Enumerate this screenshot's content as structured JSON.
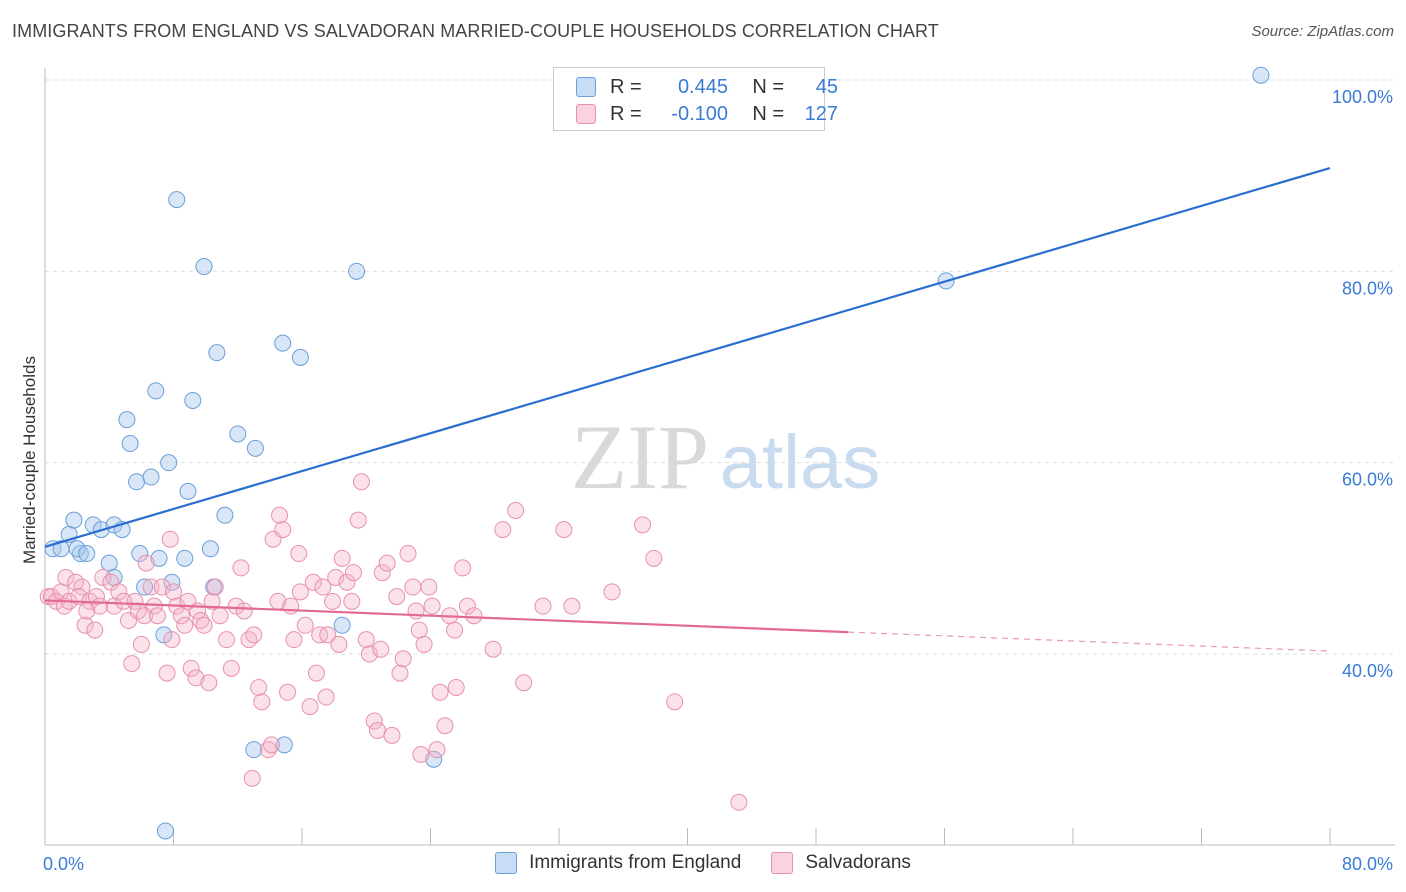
{
  "header": {
    "title": "IMMIGRANTS FROM ENGLAND VS SALVADORAN MARRIED-COUPLE HOUSEHOLDS CORRELATION CHART",
    "source": "Source: ZipAtlas.com"
  },
  "watermark": {
    "zip": "ZIP",
    "atlas": "atlas"
  },
  "legend": {
    "rows": [
      {
        "r_label": "R =",
        "r_value": "0.445",
        "n_label": "N =",
        "n_value": "45",
        "color": "#a9c8ee"
      },
      {
        "r_label": "R =",
        "r_value": "-0.100",
        "n_label": "N =",
        "n_value": "127",
        "color": "#f5b3c8"
      }
    ]
  },
  "chart_data": {
    "type": "scatter",
    "title": "IMMIGRANTS FROM ENGLAND VS SALVADORAN MARRIED-COUPLE HOUSEHOLDS CORRELATION CHART",
    "xlabel": "",
    "ylabel": "Married-couple Households",
    "xlim": [
      0,
      80
    ],
    "ylim": [
      20,
      102
    ],
    "x_tick_labels": [
      "0.0%",
      "80.0%"
    ],
    "y_ticks": [
      {
        "value": 40,
        "label": "40.0%"
      },
      {
        "value": 60,
        "label": "60.0%"
      },
      {
        "value": 80,
        "label": "80.0%"
      },
      {
        "value": 100,
        "label": "100.0%"
      }
    ],
    "series": [
      {
        "name": "Immigrants from England",
        "color": "#a9c8ee",
        "stroke": "#6a9fd8",
        "trend": {
          "x": [
            0,
            80
          ],
          "y": [
            51.2,
            90.8
          ],
          "color": "#2a6fcf",
          "solid_to": 80
        },
        "points": [
          [
            0.5,
            51
          ],
          [
            1.0,
            51
          ],
          [
            1.5,
            52.5
          ],
          [
            1.8,
            54
          ],
          [
            2.2,
            50.5
          ],
          [
            2.0,
            51
          ],
          [
            2.6,
            50.5
          ],
          [
            3.0,
            53.5
          ],
          [
            3.5,
            53
          ],
          [
            4.0,
            49.5
          ],
          [
            4.3,
            53.5
          ],
          [
            4.3,
            48
          ],
          [
            5.1,
            64.5
          ],
          [
            5.3,
            62
          ],
          [
            5.7,
            58
          ],
          [
            5.9,
            50.5
          ],
          [
            6.2,
            47
          ],
          [
            6.6,
            58.5
          ],
          [
            6.9,
            67.5
          ],
          [
            7.1,
            50
          ],
          [
            7.4,
            42
          ],
          [
            7.7,
            60
          ],
          [
            7.9,
            47.5
          ],
          [
            8.2,
            87.5
          ],
          [
            8.7,
            50
          ],
          [
            8.9,
            57
          ],
          [
            9.2,
            66.5
          ],
          [
            9.9,
            80.5
          ],
          [
            10.3,
            51
          ],
          [
            10.7,
            71.5
          ],
          [
            11.2,
            54.5
          ],
          [
            12.0,
            63
          ],
          [
            13.1,
            61.5
          ],
          [
            14.8,
            72.5
          ],
          [
            14.9,
            30.5
          ],
          [
            15.9,
            71
          ],
          [
            18.5,
            43
          ],
          [
            19.4,
            80
          ],
          [
            24.2,
            29
          ],
          [
            56.1,
            79
          ],
          [
            75.7,
            100.5
          ],
          [
            13.0,
            30
          ],
          [
            10.5,
            47
          ],
          [
            7.5,
            21.5
          ],
          [
            4.8,
            53
          ]
        ]
      },
      {
        "name": "Salvadorans",
        "color": "#f5b3c8",
        "stroke": "#e891ad",
        "trend": {
          "x": [
            0,
            80
          ],
          "y": [
            45.6,
            40.3
          ],
          "color": "#e26a97",
          "solid_to": 50
        },
        "points": [
          [
            0.2,
            46
          ],
          [
            0.4,
            46
          ],
          [
            0.7,
            45.5
          ],
          [
            1.0,
            46.5
          ],
          [
            1.2,
            45
          ],
          [
            1.3,
            48
          ],
          [
            1.5,
            45.5
          ],
          [
            1.9,
            47.5
          ],
          [
            2.3,
            47
          ],
          [
            2.1,
            46
          ],
          [
            2.5,
            43
          ],
          [
            2.8,
            45.5
          ],
          [
            3.1,
            42.5
          ],
          [
            3.2,
            46
          ],
          [
            3.4,
            45
          ],
          [
            3.6,
            48
          ],
          [
            4.1,
            47.5
          ],
          [
            4.3,
            45
          ],
          [
            4.6,
            46.5
          ],
          [
            4.9,
            45.5
          ],
          [
            5.2,
            43.5
          ],
          [
            5.4,
            39
          ],
          [
            5.6,
            45.5
          ],
          [
            5.8,
            44.5
          ],
          [
            6.2,
            44
          ],
          [
            6.3,
            49.5
          ],
          [
            6.6,
            47
          ],
          [
            6.8,
            45
          ],
          [
            7.0,
            44
          ],
          [
            7.3,
            47
          ],
          [
            7.6,
            38
          ],
          [
            7.8,
            52
          ],
          [
            7.9,
            41.5
          ],
          [
            8.0,
            46.5
          ],
          [
            8.2,
            45
          ],
          [
            8.5,
            44
          ],
          [
            8.7,
            43
          ],
          [
            8.9,
            45.5
          ],
          [
            9.1,
            38.5
          ],
          [
            9.4,
            37.5
          ],
          [
            9.5,
            44.5
          ],
          [
            9.7,
            43.5
          ],
          [
            10.2,
            37
          ],
          [
            10.4,
            45.5
          ],
          [
            10.6,
            47
          ],
          [
            10.9,
            44
          ],
          [
            11.3,
            41.5
          ],
          [
            11.6,
            38.5
          ],
          [
            11.9,
            45
          ],
          [
            12.2,
            49
          ],
          [
            12.4,
            44.5
          ],
          [
            12.7,
            41.5
          ],
          [
            13.0,
            42
          ],
          [
            13.3,
            36.5
          ],
          [
            13.5,
            35
          ],
          [
            13.9,
            30
          ],
          [
            14.2,
            52
          ],
          [
            14.5,
            45.5
          ],
          [
            14.6,
            54.5
          ],
          [
            14.8,
            53
          ],
          [
            15.1,
            36
          ],
          [
            15.3,
            45
          ],
          [
            15.5,
            41.5
          ],
          [
            15.8,
            50.5
          ],
          [
            15.9,
            46.5
          ],
          [
            16.2,
            43
          ],
          [
            16.5,
            34.5
          ],
          [
            16.7,
            47.5
          ],
          [
            16.9,
            38
          ],
          [
            17.1,
            42
          ],
          [
            17.3,
            47
          ],
          [
            17.6,
            42
          ],
          [
            17.9,
            45.5
          ],
          [
            18.1,
            48
          ],
          [
            18.3,
            41
          ],
          [
            18.5,
            50
          ],
          [
            18.8,
            47.5
          ],
          [
            19.1,
            45.5
          ],
          [
            19.2,
            48.5
          ],
          [
            19.5,
            54
          ],
          [
            19.7,
            58
          ],
          [
            20.0,
            41.5
          ],
          [
            20.2,
            40
          ],
          [
            20.5,
            33
          ],
          [
            20.7,
            32
          ],
          [
            21.0,
            48.5
          ],
          [
            21.3,
            49.5
          ],
          [
            21.6,
            31.5
          ],
          [
            21.9,
            46
          ],
          [
            22.1,
            38
          ],
          [
            22.3,
            39.5
          ],
          [
            22.6,
            50.5
          ],
          [
            22.9,
            47
          ],
          [
            23.1,
            44.5
          ],
          [
            23.3,
            42.5
          ],
          [
            23.6,
            41
          ],
          [
            23.9,
            47
          ],
          [
            24.1,
            45
          ],
          [
            24.4,
            30
          ],
          [
            24.6,
            36
          ],
          [
            24.9,
            32.5
          ],
          [
            25.2,
            44
          ],
          [
            25.5,
            42.5
          ],
          [
            25.6,
            36.5
          ],
          [
            26.0,
            49
          ],
          [
            26.3,
            45
          ],
          [
            26.7,
            44
          ],
          [
            28.5,
            53
          ],
          [
            29.3,
            55
          ],
          [
            29.8,
            37
          ],
          [
            31.0,
            45
          ],
          [
            32.3,
            53
          ],
          [
            32.8,
            45
          ],
          [
            35.3,
            46.5
          ],
          [
            37.2,
            53.5
          ],
          [
            37.9,
            50
          ],
          [
            39.2,
            35
          ],
          [
            43.2,
            24.5
          ],
          [
            2.6,
            44.5
          ],
          [
            6.0,
            41
          ],
          [
            9.9,
            43
          ],
          [
            12.9,
            27
          ],
          [
            14.1,
            30.5
          ],
          [
            17.5,
            35.5
          ],
          [
            20.9,
            40.5
          ],
          [
            23.4,
            29.5
          ],
          [
            27.9,
            40.5
          ]
        ]
      }
    ],
    "legend": [
      "Immigrants from England",
      "Salvadorans"
    ]
  }
}
